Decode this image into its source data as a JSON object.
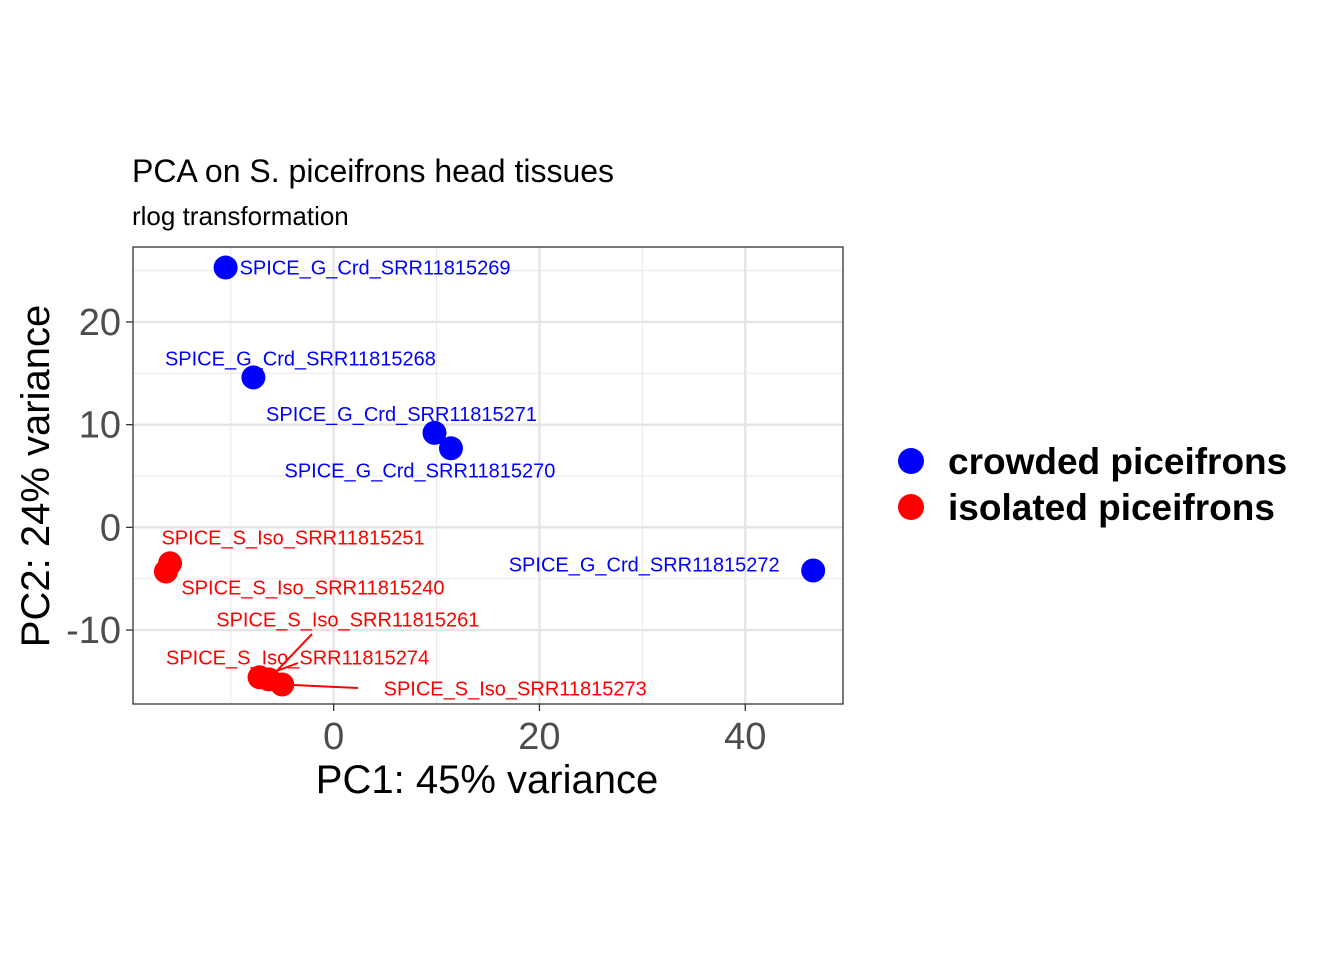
{
  "chart_data": {
    "type": "scatter",
    "title": "PCA on S. piceifrons head tissues",
    "subtitle": "rlog transformation",
    "xlabel": "PC1: 45% variance",
    "ylabel": "PC2: 24% variance",
    "xlim": [
      -19.5,
      49.5
    ],
    "ylim": [
      -17.2,
      27.3
    ],
    "xticks": [
      0,
      20,
      40
    ],
    "yticks": [
      -10,
      0,
      10,
      20
    ],
    "x_tick_labels": [
      "0",
      "20",
      "40"
    ],
    "y_tick_labels": [
      "-10",
      "0",
      "10",
      "20"
    ],
    "grid": true,
    "legend_position": "right",
    "series": [
      {
        "name": "crowded piceifrons",
        "color": "#0000FF",
        "points": [
          {
            "label": "SPICE_G_Crd_SRR11815269",
            "x": -10.5,
            "y": 25.3
          },
          {
            "label": "SPICE_G_Crd_SRR11815268",
            "x": -7.8,
            "y": 14.6
          },
          {
            "label": "SPICE_G_Crd_SRR11815271",
            "x": 9.8,
            "y": 9.2
          },
          {
            "label": "SPICE_G_Crd_SRR11815270",
            "x": 11.4,
            "y": 7.7
          },
          {
            "label": "SPICE_G_Crd_SRR11815272",
            "x": 46.6,
            "y": -4.2
          }
        ]
      },
      {
        "name": "isolated piceifrons",
        "color": "#FF0000",
        "points": [
          {
            "label": "SPICE_S_Iso_SRR11815251",
            "x": -15.9,
            "y": -3.5
          },
          {
            "label": "SPICE_S_Iso_SRR11815240",
            "x": -16.3,
            "y": -4.3
          },
          {
            "label": "SPICE_S_Iso_SRR11815261",
            "x": -6.3,
            "y": -14.8
          },
          {
            "label": "SPICE_S_Iso_SRR11815274",
            "x": -7.2,
            "y": -14.6
          },
          {
            "label": "SPICE_S_Iso_SRR11815273",
            "x": -5.0,
            "y": -15.3
          }
        ]
      }
    ]
  }
}
